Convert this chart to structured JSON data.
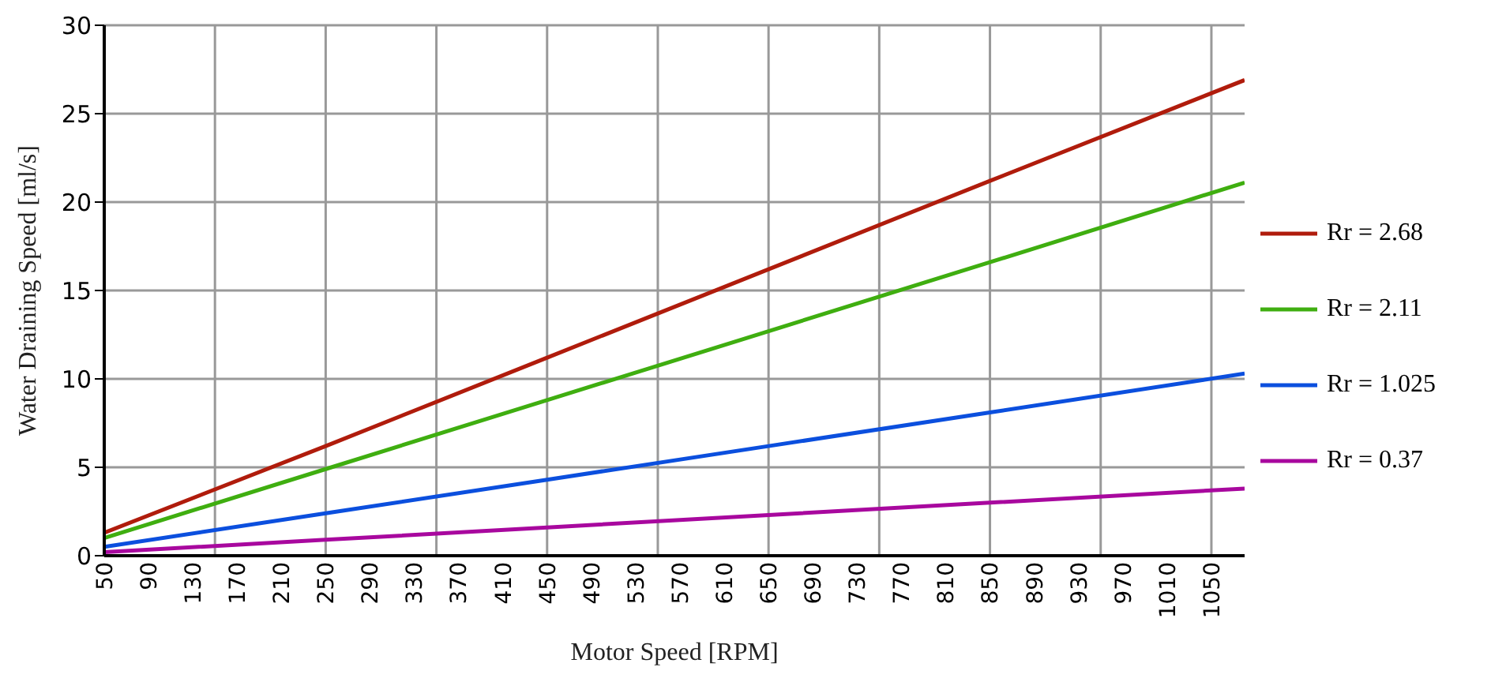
{
  "chart_data": {
    "type": "line",
    "xlabel": "Motor Speed [RPM]",
    "ylabel": "Water Draining Speed [ml/s]",
    "x": [
      50,
      250,
      450,
      650,
      850,
      1080
    ],
    "series": [
      {
        "name": "Rr = 2.68",
        "color": "#b01c0c",
        "values": [
          1.3,
          6.2,
          11.2,
          16.2,
          21.2,
          26.9
        ]
      },
      {
        "name": "Rr = 2.11",
        "color": "#3fae10",
        "values": [
          1.0,
          4.9,
          8.8,
          12.7,
          16.6,
          21.1
        ]
      },
      {
        "name": "Rr = 1.025",
        "color": "#0b4fde",
        "values": [
          0.5,
          2.4,
          4.3,
          6.2,
          8.1,
          10.3
        ]
      },
      {
        "name": "Rr = 0.37",
        "color": "#a8089e",
        "values": [
          0.2,
          0.9,
          1.6,
          2.3,
          3.0,
          3.8
        ]
      }
    ],
    "xlim": [
      50,
      1080
    ],
    "xticks": [
      50,
      90,
      130,
      {
        "value": 150,
        "label": null
      },
      170,
      210,
      250,
      290,
      330,
      {
        "value": 350,
        "label": null
      },
      370,
      410,
      450,
      490,
      530,
      {
        "value": 550,
        "label": null
      },
      570,
      610,
      650,
      690,
      730,
      {
        "value": 750,
        "label": null
      },
      770,
      810,
      850,
      890,
      930,
      {
        "value": 950,
        "label": null
      },
      970,
      1010,
      1050
    ],
    "ylim": [
      0,
      30
    ],
    "yticks": [
      0,
      5,
      10,
      15,
      20,
      25,
      30
    ],
    "grid": true,
    "legend": "right",
    "marker": "none",
    "line_style": "solid"
  }
}
